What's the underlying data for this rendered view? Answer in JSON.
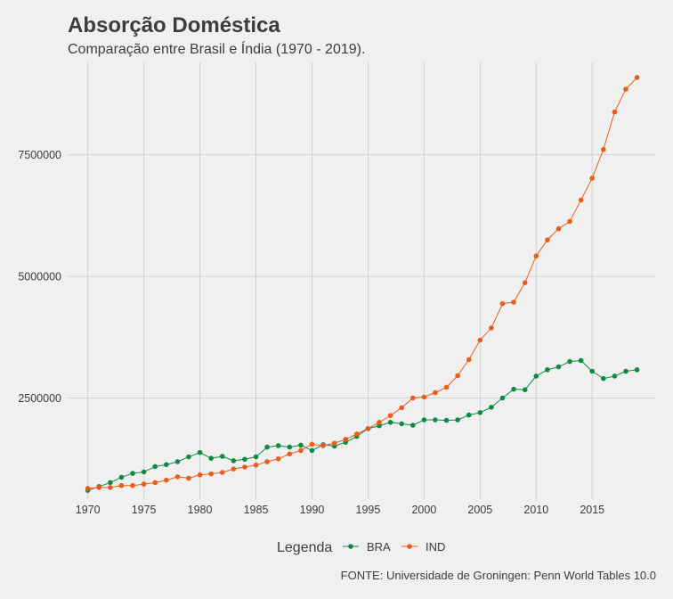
{
  "chart_data": {
    "type": "line",
    "title": "Absorção Doméstica",
    "subtitle": "Comparação entre Brasil e Índia (1970 - 2019).",
    "caption": "FONTE: Universidade de Groningen: Penn World Tables 10.0",
    "xlabel": "",
    "ylabel": "",
    "xlim": [
      1968.2,
      2020.7
    ],
    "ylim": [
      420000,
      9400000
    ],
    "x_ticks": [
      1970,
      1975,
      1980,
      1985,
      1990,
      1995,
      2000,
      2005,
      2010,
      2015
    ],
    "x_tick_labels": [
      "1970",
      "1975",
      "1980",
      "1985",
      "1990",
      "1995",
      "2000",
      "2005",
      "2010",
      "2015"
    ],
    "y_ticks": [
      2500000,
      5000000,
      7500000
    ],
    "y_tick_labels": [
      "2500000",
      "5000000",
      "7500000"
    ],
    "grid": true,
    "legend": {
      "title": "Legenda",
      "position": "bottom",
      "entries": [
        "BRA",
        "IND"
      ]
    },
    "x": [
      1970,
      1971,
      1972,
      1973,
      1974,
      1975,
      1976,
      1977,
      1978,
      1979,
      1980,
      1981,
      1982,
      1983,
      1984,
      1985,
      1986,
      1987,
      1988,
      1989,
      1990,
      1991,
      1992,
      1993,
      1994,
      1995,
      1996,
      1997,
      1998,
      1999,
      2000,
      2001,
      2002,
      2003,
      2004,
      2005,
      2006,
      2007,
      2008,
      2009,
      2010,
      2011,
      2012,
      2013,
      2014,
      2015,
      2016,
      2017,
      2018,
      2019
    ],
    "series": [
      {
        "name": "BRA",
        "color": "#0f8a43",
        "values": [
          600000,
          680000,
          760000,
          870000,
          950000,
          980000,
          1090000,
          1130000,
          1190000,
          1290000,
          1380000,
          1260000,
          1300000,
          1210000,
          1240000,
          1290000,
          1490000,
          1520000,
          1490000,
          1530000,
          1420000,
          1540000,
          1510000,
          1590000,
          1710000,
          1870000,
          1930000,
          2000000,
          1970000,
          1940000,
          2050000,
          2050000,
          2040000,
          2050000,
          2150000,
          2200000,
          2310000,
          2500000,
          2680000,
          2670000,
          2950000,
          3080000,
          3140000,
          3250000,
          3270000,
          3050000,
          2900000,
          2950000,
          3050000,
          3080000
        ]
      },
      {
        "name": "IND",
        "color": "#ea5c1c",
        "values": [
          640000,
          660000,
          660000,
          700000,
          700000,
          730000,
          760000,
          810000,
          880000,
          850000,
          920000,
          940000,
          970000,
          1040000,
          1080000,
          1120000,
          1190000,
          1250000,
          1350000,
          1420000,
          1550000,
          1520000,
          1570000,
          1650000,
          1760000,
          1870000,
          2000000,
          2140000,
          2300000,
          2500000,
          2520000,
          2610000,
          2720000,
          2960000,
          3290000,
          3690000,
          3940000,
          4440000,
          4470000,
          4870000,
          5420000,
          5750000,
          5980000,
          6130000,
          6570000,
          7020000,
          7610000,
          8380000,
          8850000,
          9090000
        ]
      }
    ]
  }
}
